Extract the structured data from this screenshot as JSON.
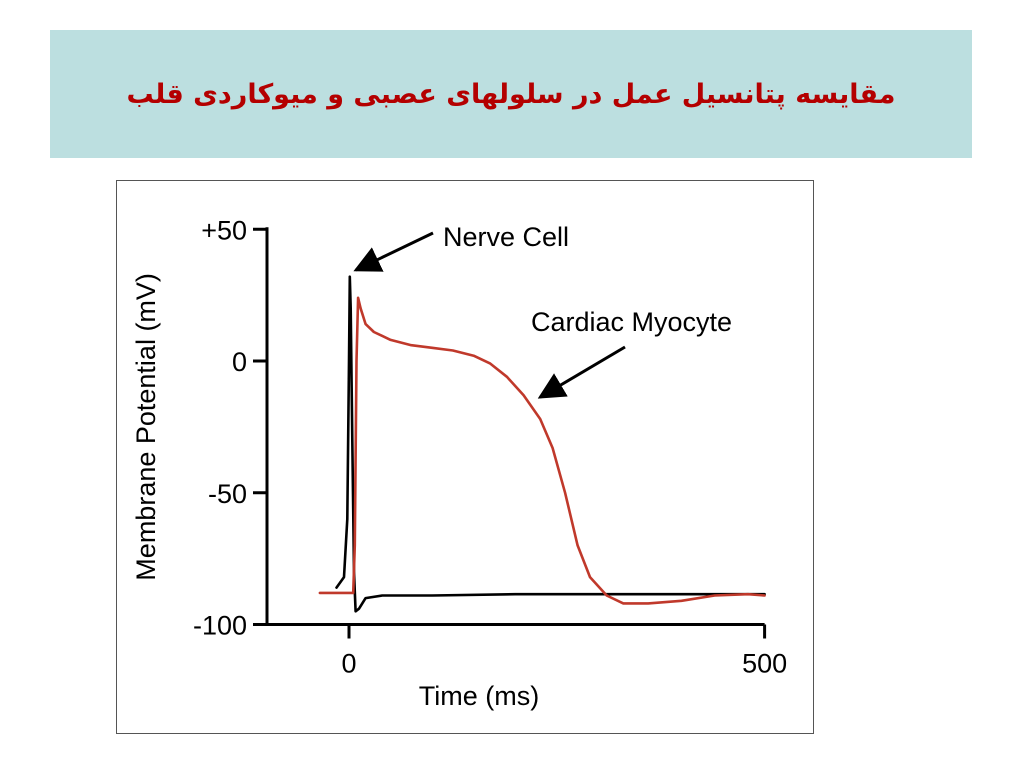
{
  "slide": {
    "title": "مقایسه پتانسیل عمل در سلولهای عصبی و میوکاردی قلب",
    "title_color": "#b40000",
    "band_color": "#bcdfe0"
  },
  "chart_data": {
    "type": "line",
    "xlabel": "Time (ms)",
    "ylabel": "Membrane Potential (mV)",
    "xlim": [
      -75,
      500
    ],
    "ylim": [
      -100,
      50
    ],
    "x_ticks": [
      {
        "value": 0,
        "label": "0"
      },
      {
        "value": 500,
        "label": "500"
      }
    ],
    "y_ticks": [
      {
        "value": 50,
        "label": "+50"
      },
      {
        "value": 0,
        "label": "0"
      },
      {
        "value": -50,
        "label": "-50"
      },
      {
        "value": -100,
        "label": "-100"
      }
    ],
    "grid": false,
    "series": [
      {
        "name": "Nerve Cell",
        "color": "#000000",
        "points": [
          [
            -15,
            -86
          ],
          [
            -6,
            -82
          ],
          [
            -2,
            -60
          ],
          [
            0,
            0
          ],
          [
            1,
            32
          ],
          [
            2,
            20
          ],
          [
            4,
            -30
          ],
          [
            6,
            -80
          ],
          [
            8,
            -95
          ],
          [
            12,
            -94
          ],
          [
            20,
            -90
          ],
          [
            40,
            -89
          ],
          [
            100,
            -89
          ],
          [
            200,
            -88.5
          ],
          [
            300,
            -88.5
          ],
          [
            400,
            -88.5
          ],
          [
            500,
            -88.5
          ]
        ]
      },
      {
        "name": "Cardiac Myocyte",
        "color": "#c0392b",
        "points": [
          [
            -35,
            -88
          ],
          [
            5,
            -88
          ],
          [
            7,
            -70
          ],
          [
            9,
            0
          ],
          [
            11,
            24
          ],
          [
            14,
            20
          ],
          [
            20,
            14
          ],
          [
            30,
            11
          ],
          [
            50,
            8
          ],
          [
            75,
            6
          ],
          [
            100,
            5
          ],
          [
            125,
            4
          ],
          [
            150,
            2
          ],
          [
            170,
            -1
          ],
          [
            190,
            -6
          ],
          [
            210,
            -13
          ],
          [
            230,
            -22
          ],
          [
            245,
            -33
          ],
          [
            260,
            -50
          ],
          [
            275,
            -70
          ],
          [
            290,
            -82
          ],
          [
            310,
            -89
          ],
          [
            330,
            -92
          ],
          [
            360,
            -92
          ],
          [
            400,
            -91
          ],
          [
            440,
            -89
          ],
          [
            480,
            -88.5
          ],
          [
            500,
            -89
          ]
        ]
      }
    ],
    "annotations": [
      {
        "text": "Nerve Cell",
        "arrow_to": [
          1,
          33
        ]
      },
      {
        "text": "Cardiac Myocyte",
        "arrow_to": [
          225,
          -13
        ]
      }
    ]
  }
}
